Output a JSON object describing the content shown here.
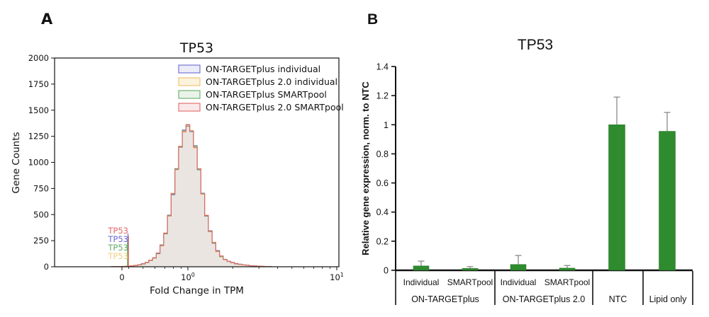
{
  "figure": {
    "background": "#ffffff"
  },
  "panel_a": {
    "label": "A",
    "title": "TP53",
    "xlabel": "Fold Change in TPM",
    "ylabel": "Gene Counts"
  },
  "panel_b": {
    "label": "B",
    "title": "TP53",
    "ylabel": "Relative gene expression, norm. to NTC"
  },
  "chart_data": [
    {
      "type": "histogram-step",
      "panel": "A",
      "title": "TP53",
      "xlabel": "Fold Change in TPM",
      "ylabel": "Gene Counts",
      "x_scale": "symlog",
      "x_major_ticks": [
        {
          "value": 0,
          "base": "0",
          "sup": ""
        },
        {
          "value": 1,
          "base": "10",
          "sup": "0"
        },
        {
          "value": 10,
          "base": "10",
          "sup": "1"
        }
      ],
      "x_minor_ticks": [
        0.4,
        0.5,
        0.6,
        0.7,
        0.8,
        0.9,
        2,
        3,
        4,
        5,
        6,
        7,
        8,
        9
      ],
      "ylim": [
        0,
        2000
      ],
      "y_ticks": [
        0,
        250,
        500,
        750,
        1000,
        1250,
        1500,
        1750,
        2000
      ],
      "legend_position": "upper right",
      "bins_log10": {
        "start": -0.5,
        "step": 0.025
      },
      "series": [
        {
          "name": "ON-TARGETplus individual",
          "color": "#6A6AD1",
          "fill": "#ECECF8",
          "counts": [
            2,
            1,
            3,
            2,
            6,
            7,
            13,
            17,
            30,
            40,
            62,
            88,
            125,
            210,
            315,
            495,
            690,
            940,
            1145,
            1310,
            1360,
            1295,
            1160,
            930,
            705,
            485,
            345,
            225,
            155,
            98,
            72,
            50,
            42,
            28,
            25,
            17,
            15,
            9,
            8,
            5,
            4,
            2,
            2
          ]
        },
        {
          "name": "ON-TARGETplus 2.0 individual",
          "color": "#EFC069",
          "fill": "#FBF3DC",
          "counts": [
            1,
            3,
            2,
            4,
            4,
            9,
            11,
            19,
            27,
            44,
            58,
            87,
            133,
            200,
            325,
            485,
            705,
            930,
            1155,
            1290,
            1350,
            1305,
            1140,
            940,
            695,
            495,
            335,
            235,
            145,
            102,
            68,
            54,
            38,
            31,
            22,
            19,
            13,
            11,
            7,
            6,
            3,
            3,
            1
          ]
        },
        {
          "name": "ON-TARGETplus SMARTpool",
          "color": "#63AC63",
          "fill": "#E9F3E9",
          "counts": [
            2,
            2,
            3,
            3,
            5,
            7,
            12,
            20,
            26,
            43,
            61,
            83,
            128,
            208,
            318,
            492,
            698,
            938,
            1148,
            1305,
            1345,
            1298,
            1155,
            928,
            702,
            488,
            342,
            228,
            152,
            96,
            71,
            51,
            41,
            29,
            23,
            18,
            14,
            10,
            9,
            5,
            4,
            3,
            2
          ]
        },
        {
          "name": "ON-TARGETplus 2.0 SMARTpool",
          "color": "#E26868",
          "fill": "#FBE9E9",
          "counts": [
            1,
            2,
            2,
            4,
            6,
            8,
            14,
            18,
            29,
            41,
            63,
            86,
            132,
            203,
            322,
            488,
            702,
            932,
            1152,
            1295,
            1362,
            1302,
            1145,
            938,
            698,
            492,
            338,
            232,
            148,
            104,
            69,
            53,
            39,
            32,
            24,
            17,
            15,
            11,
            7,
            6,
            5,
            2,
            1
          ]
        }
      ],
      "zero_spikes": [
        {
          "series": "ON-TARGETplus individual",
          "color": "#6A6AD1",
          "count": 320
        },
        {
          "series": "ON-TARGETplus 2.0 individual",
          "color": "#EFC069",
          "count": 165
        },
        {
          "series": "ON-TARGETplus SMARTpool",
          "color": "#63AC63",
          "count": 240
        },
        {
          "series": "ON-TARGETplus 2.0 SMARTpool",
          "color": "#E26868",
          "count": 295
        }
      ],
      "annotations": [
        {
          "text": "TP53",
          "color": "#E26868"
        },
        {
          "text": "TP53",
          "color": "#6A6AD1"
        },
        {
          "text": "TP53",
          "color": "#63AC63"
        },
        {
          "text": "TP53",
          "color": "#F0CF7E"
        }
      ]
    },
    {
      "type": "bar",
      "panel": "B",
      "title": "TP53",
      "ylabel": "Relative gene expression, norm. to NTC",
      "ylim": [
        0,
        1.4
      ],
      "y_tick_labels": [
        "0",
        "0.2",
        "0.4",
        "0.6",
        "0.8",
        "1",
        "1.2",
        "1.4"
      ],
      "y_tick_values": [
        0,
        0.2,
        0.4,
        0.6,
        0.8,
        1,
        1.2,
        1.4
      ],
      "bar_color": "#2E8B2E",
      "bar_edge_color": "#20701F",
      "error_color": "#8A8A8A",
      "bars": [
        {
          "top_label": "Individual",
          "value": 0.03,
          "error_up": 0.033
        },
        {
          "top_label": "SMARTpool",
          "value": 0.013,
          "error_up": 0.012
        },
        {
          "top_label": "Individual",
          "value": 0.04,
          "error_up": 0.062
        },
        {
          "top_label": "SMARTpool",
          "value": 0.015,
          "error_up": 0.018
        },
        {
          "top_label": "",
          "value": 1.0,
          "error_up": 0.19
        },
        {
          "top_label": "",
          "value": 0.955,
          "error_up": 0.13
        }
      ],
      "groups": [
        {
          "label": "ON-TARGETplus",
          "bar_indexes": [
            0,
            1
          ]
        },
        {
          "label": "ON-TARGETplus 2.0",
          "bar_indexes": [
            2,
            3
          ]
        },
        {
          "label": "NTC",
          "bar_indexes": [
            4
          ]
        },
        {
          "label": "Lipid only",
          "bar_indexes": [
            5
          ]
        }
      ]
    }
  ]
}
